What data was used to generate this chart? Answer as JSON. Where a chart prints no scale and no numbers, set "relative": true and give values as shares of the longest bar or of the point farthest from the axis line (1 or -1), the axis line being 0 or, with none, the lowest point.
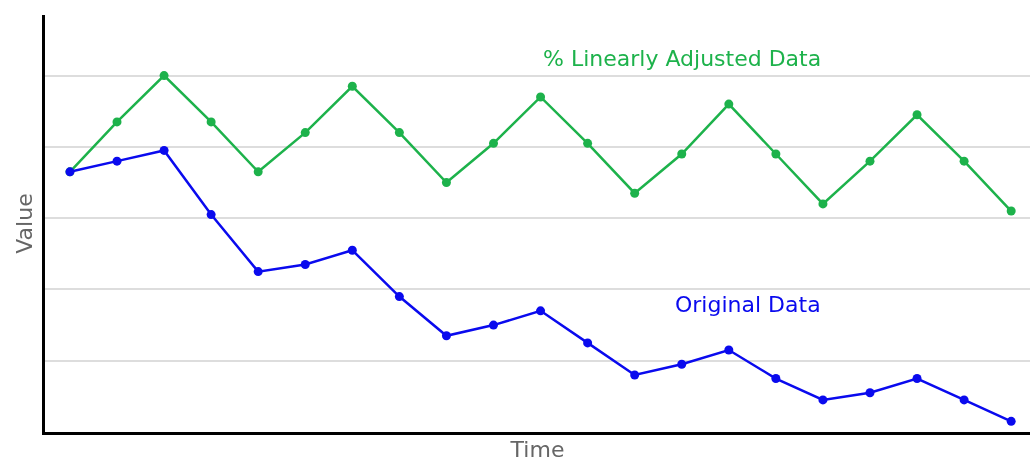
{
  "chart_data": {
    "type": "line",
    "relative": true,
    "xlabel": "Time",
    "ylabel": "Value",
    "categories": [
      null,
      null,
      null,
      null,
      null,
      null,
      null,
      null,
      null,
      null,
      null,
      null,
      null,
      null,
      null,
      null,
      null,
      null,
      null,
      null,
      null
    ],
    "grid": "y",
    "legend": false,
    "marker": "circle",
    "line_style": "solid",
    "series": [
      {
        "name": "% Linearly Adjusted Data",
        "color": "#1db24b",
        "values": [
          0.73,
          0.87,
          1,
          0.87,
          0.73,
          0.84,
          0.97,
          0.84,
          0.7,
          0.81,
          0.94,
          0.81,
          0.67,
          0.78,
          0.92,
          0.78,
          0.64,
          0.76,
          0.89,
          0.76,
          0.62
        ]
      },
      {
        "name": "Original Data",
        "color": "#0a0aee",
        "values": [
          0.73,
          0.76,
          0.79,
          0.61,
          0.45,
          0.47,
          0.51,
          0.38,
          0.27,
          0.3,
          0.34,
          0.25,
          0.16,
          0.19,
          0.23,
          0.15,
          0.09,
          0.11,
          0.15,
          0.09,
          0.03
        ]
      }
    ]
  }
}
